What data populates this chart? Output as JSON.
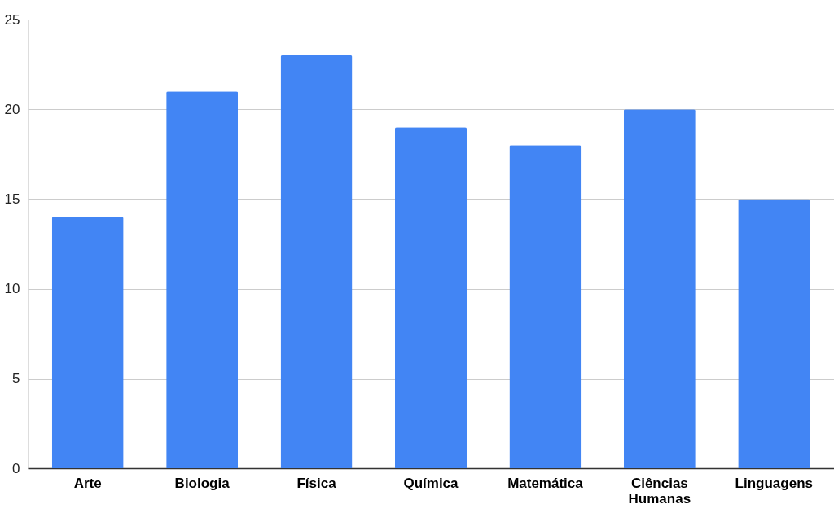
{
  "chart_data": {
    "type": "bar",
    "categories": [
      "Arte",
      "Biologia",
      "Física",
      "Química",
      "Matemática",
      "Ciências Humanas",
      "Linguagens"
    ],
    "values": [
      14,
      21,
      23,
      19,
      18,
      20,
      15
    ],
    "color": "#4285f4",
    "ylim": [
      0,
      25
    ],
    "yticks": [
      0,
      5,
      10,
      15,
      20,
      25
    ],
    "grid": "y"
  }
}
